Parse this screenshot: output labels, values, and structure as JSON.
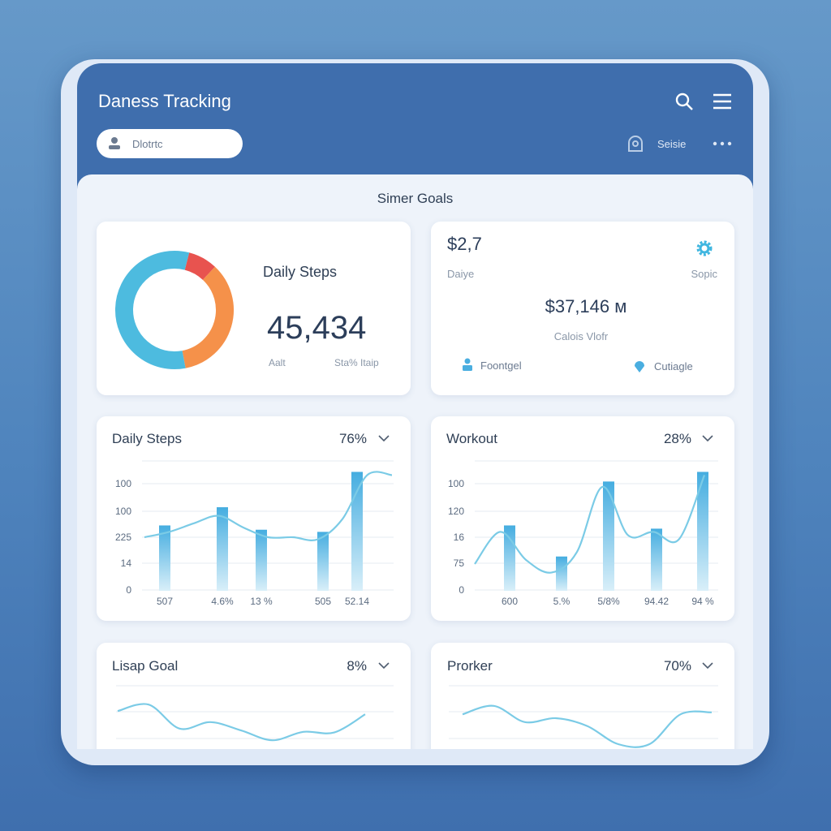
{
  "header": {
    "title": "Daness Tracking",
    "search_placeholder": "Dlotrtc",
    "user_label": "Seisie"
  },
  "content": {
    "title": "Simer Goals"
  },
  "summary_card": {
    "label": "Daily Steps",
    "value": "45,434",
    "footer_left": "Aalt",
    "footer_right": "Sta% Itaip",
    "donut": [
      {
        "color": "#e8534f",
        "value": 8
      },
      {
        "color": "#f5914a",
        "value": 35
      },
      {
        "color": "#4dbbdf",
        "value": 57
      }
    ]
  },
  "stats_card": {
    "amount": "$2,7",
    "left_label": "Daiye",
    "right_label": "Sopic",
    "total": "$37,146 м",
    "caption": "Calois Vlofr",
    "action_left": "Foontgel",
    "action_right": "Cutiagle"
  },
  "panels": [
    {
      "title": "Daily Steps",
      "percent": "76%",
      "y_labels": [
        "100",
        "100",
        "225",
        "14",
        "0"
      ],
      "x_labels": [
        "507",
        "4.6%",
        "13 %",
        "505",
        "52.14"
      ],
      "bars": [
        61,
        78,
        57,
        55,
        111
      ],
      "line": [
        50,
        55,
        63,
        70,
        59,
        50,
        50,
        48,
        67,
        108,
        108
      ]
    },
    {
      "title": "Workout",
      "percent": "28%",
      "y_labels": [
        "100",
        "120",
        "16",
        "75",
        "0"
      ],
      "x_labels": [
        "600",
        "5.%",
        "5/8%",
        "94.42",
        "94 %"
      ],
      "bars": [
        61,
        32,
        102,
        58,
        111
      ],
      "line": [
        25,
        55,
        29,
        17,
        36,
        97,
        52,
        55,
        48,
        108
      ]
    }
  ],
  "mini_panels": [
    {
      "title": "Lisap Goal",
      "percent": "8%",
      "line": [
        61,
        71,
        34,
        44,
        31,
        16,
        29,
        28,
        56
      ]
    },
    {
      "title": "Prorker",
      "percent": "70%",
      "line": [
        56,
        69,
        44,
        50,
        38,
        10,
        10,
        56,
        59
      ]
    }
  ]
}
